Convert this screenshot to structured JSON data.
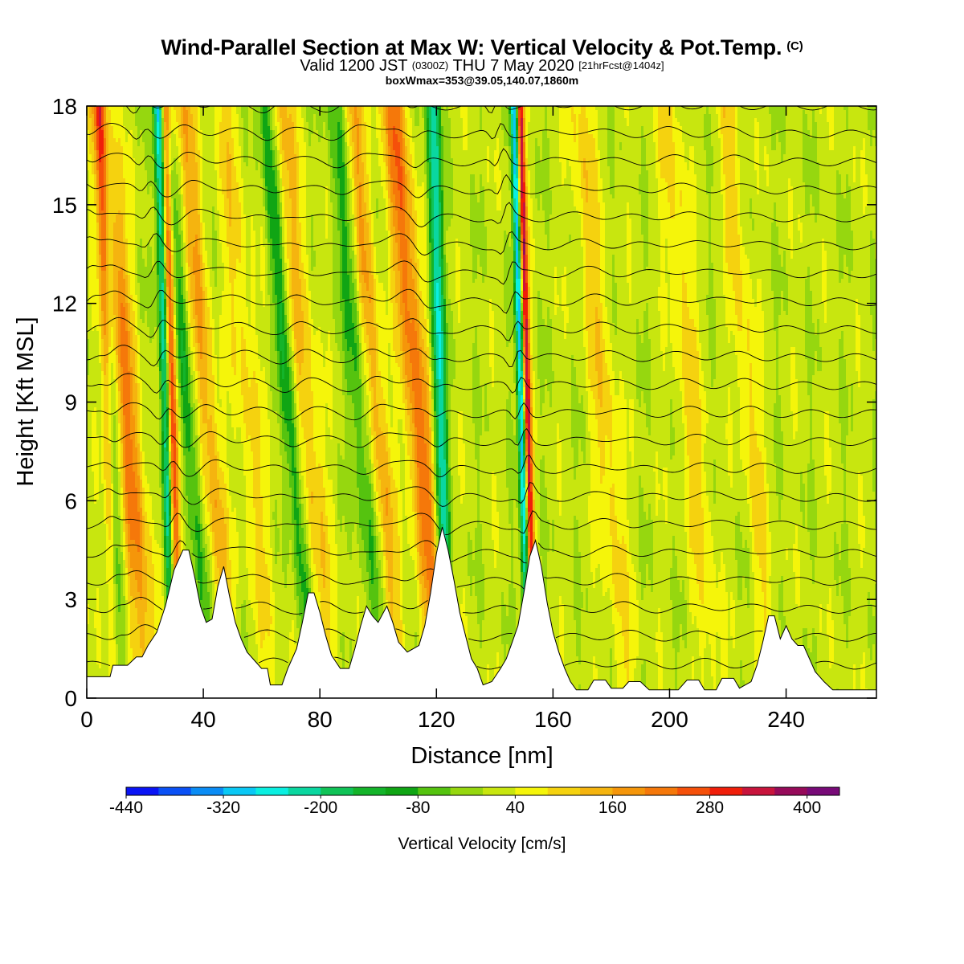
{
  "header": {
    "title_main": "Wind-Parallel Section at Max W: Vertical Velocity & Pot.Temp.",
    "title_mark": "(C)",
    "valid_a": "Valid 1200 JST",
    "valid_b": "(0300Z)",
    "valid_c": "THU 7 May 2020",
    "valid_d": "[21hrFcst@1404z]",
    "box_line": "boxWmax=353@39.05,140.07,1860m"
  },
  "chart_data": {
    "type": "heatmap",
    "xlabel": "Distance [nm]",
    "ylabel": "Height [Kft MSL]",
    "xlim": [
      0,
      271
    ],
    "ylim": [
      0,
      18
    ],
    "xticks": [
      0,
      40,
      80,
      120,
      160,
      200,
      240
    ],
    "yticks": [
      0,
      3,
      6,
      9,
      12,
      15,
      18
    ],
    "colorbar": {
      "label": "Vertical Velocity [cm/s]",
      "ticks": [
        -440,
        -320,
        -200,
        -80,
        40,
        160,
        280,
        400
      ],
      "bins": [
        -440,
        -400,
        -360,
        -320,
        -280,
        -240,
        -200,
        -160,
        -120,
        -80,
        -40,
        0,
        40,
        80,
        120,
        160,
        200,
        240,
        280,
        320,
        360,
        400,
        440
      ],
      "colors": [
        "#0a14f5",
        "#0a50f5",
        "#0a8cf5",
        "#0ac8f5",
        "#0aefe1",
        "#0ad7a0",
        "#10c357",
        "#14b42a",
        "#10a514",
        "#55c30f",
        "#96d70f",
        "#c8e60f",
        "#f5f50a",
        "#f5d20f",
        "#f5b40f",
        "#f5960a",
        "#f5780a",
        "#f5500a",
        "#f01e0a",
        "#c8143c",
        "#960a5a",
        "#780a78"
      ]
    },
    "terrain_kft": [
      [
        0,
        0.65
      ],
      [
        8,
        0.65
      ],
      [
        9,
        1.0
      ],
      [
        14,
        1.0
      ],
      [
        17,
        1.25
      ],
      [
        19,
        1.25
      ],
      [
        21,
        1.6
      ],
      [
        24,
        2.0
      ],
      [
        27,
        2.8
      ],
      [
        30,
        3.9
      ],
      [
        33,
        4.5
      ],
      [
        35,
        4.5
      ],
      [
        37,
        3.7
      ],
      [
        39,
        2.8
      ],
      [
        41,
        2.3
      ],
      [
        43,
        2.4
      ],
      [
        45,
        3.4
      ],
      [
        47,
        4.0
      ],
      [
        49,
        3.1
      ],
      [
        51,
        2.3
      ],
      [
        53,
        1.8
      ],
      [
        55,
        1.4
      ],
      [
        58,
        1.1
      ],
      [
        60,
        0.9
      ],
      [
        62,
        0.9
      ],
      [
        63,
        0.4
      ],
      [
        67,
        0.4
      ],
      [
        69,
        0.9
      ],
      [
        72,
        1.5
      ],
      [
        74,
        2.3
      ],
      [
        76,
        3.2
      ],
      [
        78,
        3.2
      ],
      [
        80,
        2.6
      ],
      [
        82,
        1.9
      ],
      [
        84,
        1.3
      ],
      [
        87,
        0.9
      ],
      [
        90,
        0.9
      ],
      [
        92,
        1.5
      ],
      [
        94,
        2.2
      ],
      [
        96,
        2.8
      ],
      [
        98,
        2.5
      ],
      [
        100,
        2.3
      ],
      [
        103,
        2.8
      ],
      [
        105,
        2.3
      ],
      [
        107,
        1.7
      ],
      [
        110,
        1.4
      ],
      [
        114,
        1.6
      ],
      [
        116,
        2.2
      ],
      [
        118,
        3.2
      ],
      [
        120,
        4.4
      ],
      [
        122,
        5.2
      ],
      [
        124,
        4.5
      ],
      [
        126,
        3.6
      ],
      [
        128,
        2.6
      ],
      [
        130,
        1.9
      ],
      [
        132,
        1.2
      ],
      [
        134,
        0.9
      ],
      [
        136,
        0.4
      ],
      [
        139,
        0.5
      ],
      [
        142,
        0.9
      ],
      [
        144,
        1.2
      ],
      [
        146,
        1.7
      ],
      [
        148,
        2.2
      ],
      [
        150,
        3.2
      ],
      [
        152,
        4.3
      ],
      [
        154,
        4.8
      ],
      [
        156,
        4.0
      ],
      [
        158,
        2.9
      ],
      [
        160,
        2.0
      ],
      [
        162,
        1.4
      ],
      [
        164,
        0.9
      ],
      [
        166,
        0.5
      ],
      [
        168,
        0.25
      ],
      [
        172,
        0.25
      ],
      [
        174,
        0.55
      ],
      [
        178,
        0.55
      ],
      [
        180,
        0.3
      ],
      [
        184,
        0.3
      ],
      [
        186,
        0.5
      ],
      [
        190,
        0.5
      ],
      [
        193,
        0.25
      ],
      [
        203,
        0.25
      ],
      [
        206,
        0.55
      ],
      [
        210,
        0.55
      ],
      [
        212,
        0.25
      ],
      [
        216,
        0.25
      ],
      [
        218,
        0.6
      ],
      [
        222,
        0.6
      ],
      [
        224,
        0.3
      ],
      [
        228,
        0.5
      ],
      [
        230,
        1.0
      ],
      [
        232,
        1.7
      ],
      [
        234,
        2.5
      ],
      [
        236,
        2.5
      ],
      [
        238,
        1.8
      ],
      [
        240,
        2.2
      ],
      [
        242,
        1.8
      ],
      [
        244,
        1.6
      ],
      [
        246,
        1.6
      ],
      [
        248,
        1.2
      ],
      [
        250,
        0.8
      ],
      [
        253,
        0.5
      ],
      [
        256,
        0.25
      ],
      [
        271,
        0.25
      ]
    ],
    "updrafts": [
      {
        "x": 8,
        "w": 130,
        "d": 4
      },
      {
        "x": 16,
        "w": 200,
        "d": 10
      },
      {
        "x": 30,
        "w": 330,
        "d": 4
      },
      {
        "x": 44,
        "w": 140,
        "d": 8
      },
      {
        "x": 58,
        "w": 80,
        "d": 10
      },
      {
        "x": 78,
        "w": 110,
        "d": 10
      },
      {
        "x": 102,
        "w": 140,
        "d": 8
      },
      {
        "x": 116,
        "w": 210,
        "d": 10
      },
      {
        "x": 152,
        "w": 353,
        "d": 3
      },
      {
        "x": 180,
        "w": 90,
        "d": 10
      },
      {
        "x": 210,
        "w": 80,
        "d": 10
      },
      {
        "x": 230,
        "w": 80,
        "d": 8
      }
    ],
    "downdrafts": [
      {
        "x": 10,
        "w": -110,
        "d": 5
      },
      {
        "x": 28,
        "w": -300,
        "d": 4
      },
      {
        "x": 37,
        "w": -120,
        "d": 6
      },
      {
        "x": 72,
        "w": -140,
        "d": 6
      },
      {
        "x": 96,
        "w": -100,
        "d": 8
      },
      {
        "x": 122,
        "w": -260,
        "d": 5
      },
      {
        "x": 150,
        "w": -330,
        "d": 3
      }
    ]
  }
}
